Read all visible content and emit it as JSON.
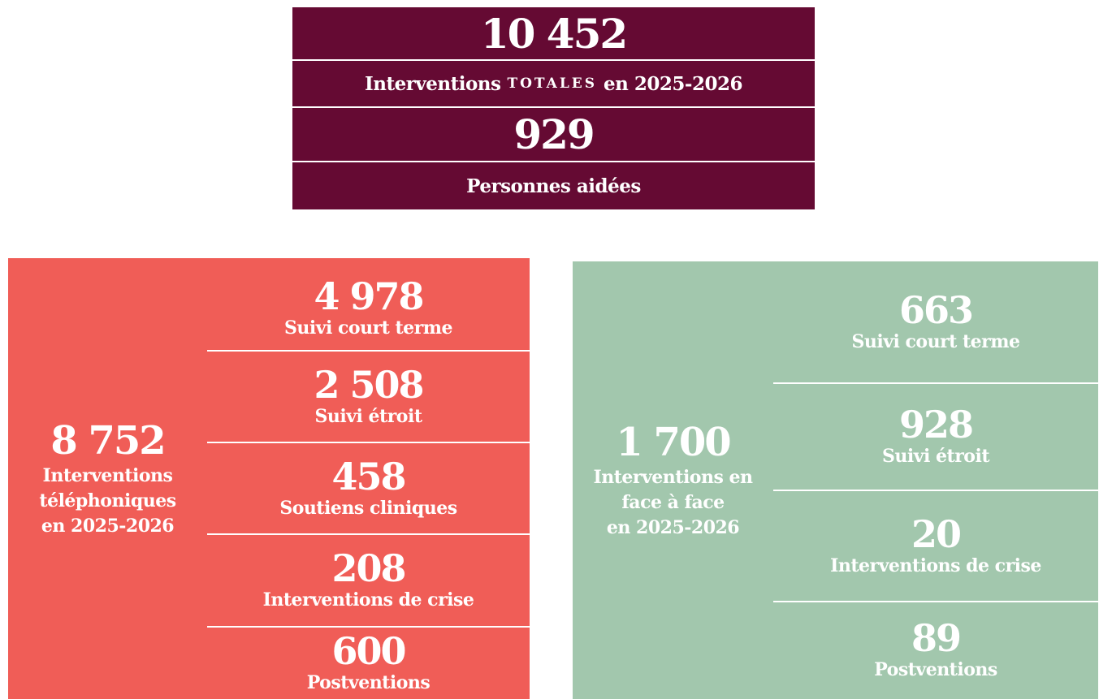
{
  "summary": {
    "total": "10 452",
    "total_label": [
      "Interventions",
      "TOTALES",
      "en 2025-2026"
    ],
    "people": "929",
    "people_label": "Personnes aidées"
  },
  "phone": {
    "value": "8 752",
    "label": [
      "Interventions",
      "téléphoniques",
      "en 2025-2026"
    ],
    "items": [
      {
        "value": "4 978",
        "label": "Suivi court terme"
      },
      {
        "value": "2 508",
        "label": "Suivi étroit"
      },
      {
        "value": "458",
        "label": "Soutiens cliniques"
      },
      {
        "value": "208",
        "label": "Interventions de crise"
      },
      {
        "value": "600",
        "label": "Postventions"
      }
    ]
  },
  "in_person": {
    "value": "1 700",
    "label": [
      "Interventions en",
      "face à face",
      "en 2025-2026"
    ],
    "items": [
      {
        "value": "663",
        "label": "Suivi court terme"
      },
      {
        "value": "928",
        "label": "Suivi étroit"
      },
      {
        "value": "20",
        "label": "Interventions de crise"
      },
      {
        "value": "89",
        "label": "Postventions"
      }
    ]
  }
}
